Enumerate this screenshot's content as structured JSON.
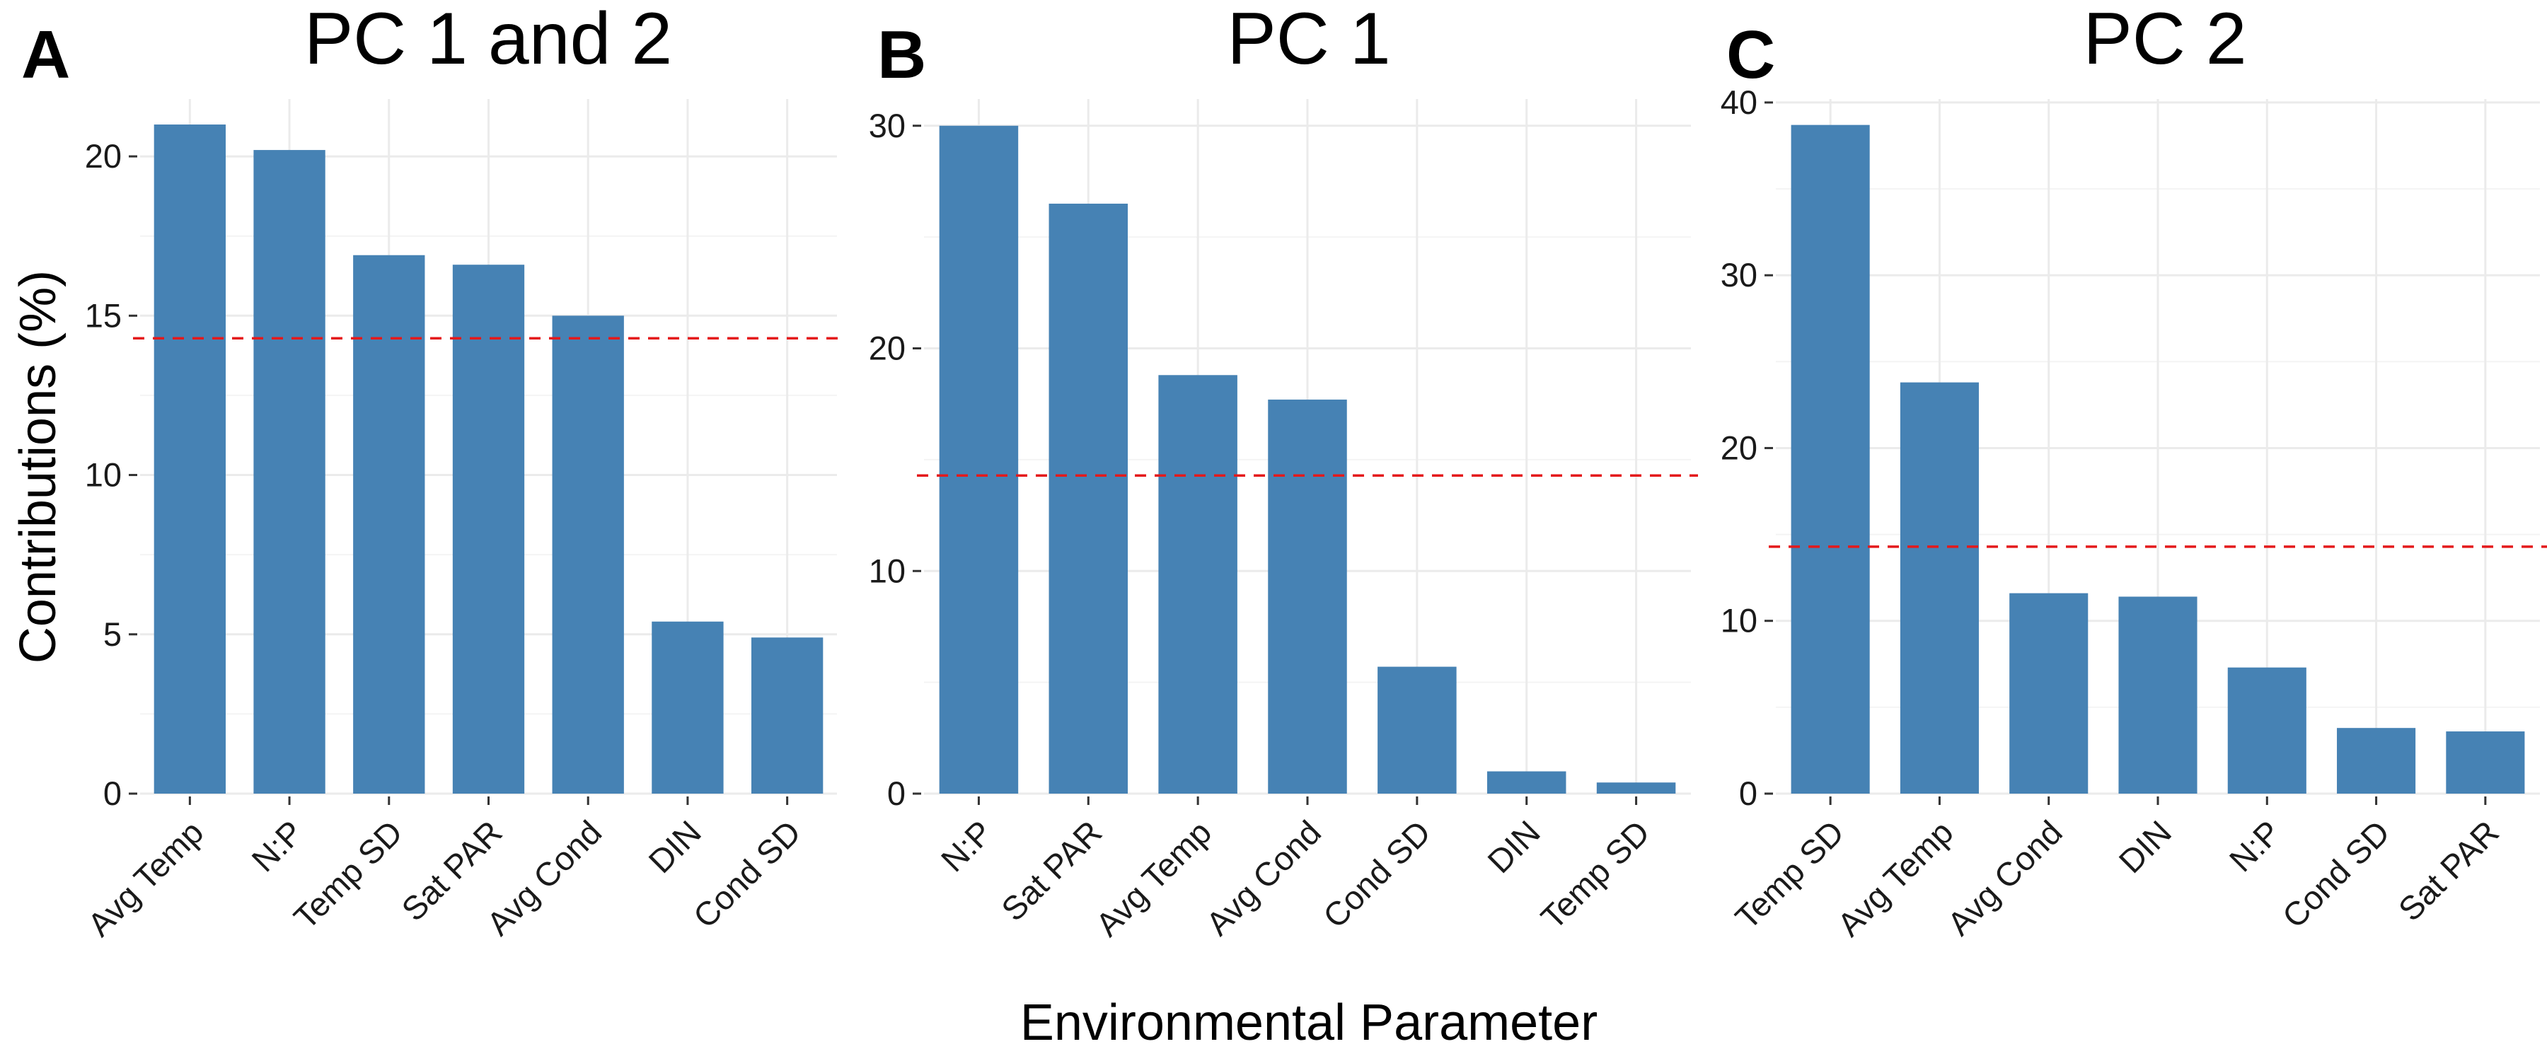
{
  "figure": {
    "ylabel": "Contributions (%)",
    "xlabel": "Environmental Parameter"
  },
  "chart_data": [
    {
      "type": "bar",
      "panel_letter": "A",
      "title": "PC 1 and 2",
      "categories": [
        "Avg Temp",
        "N:P",
        "Temp SD",
        "Sat PAR",
        "Avg Cond",
        "DIN",
        "Cond SD"
      ],
      "values": [
        21.0,
        20.2,
        16.9,
        16.6,
        15.0,
        5.4,
        4.9
      ],
      "reference_line": 14.29,
      "ylim": [
        0,
        21.8
      ],
      "yticks": [
        0,
        5,
        10,
        15,
        20
      ],
      "grid": true,
      "bar_color": "#4682B4",
      "reference_color": "#E41A1C"
    },
    {
      "type": "bar",
      "panel_letter": "B",
      "title": "PC 1",
      "categories": [
        "N:P",
        "Sat PAR",
        "Avg Temp",
        "Avg Cond",
        "Cond SD",
        "DIN",
        "Temp SD"
      ],
      "values": [
        30.0,
        26.5,
        18.8,
        17.7,
        5.7,
        1.0,
        0.5
      ],
      "reference_line": 14.29,
      "ylim": [
        0,
        31.2
      ],
      "yticks": [
        0,
        10,
        20,
        30
      ],
      "grid": true,
      "bar_color": "#4682B4",
      "reference_color": "#E41A1C"
    },
    {
      "type": "bar",
      "panel_letter": "C",
      "title": "PC 2",
      "categories": [
        "Temp SD",
        "Avg Temp",
        "Avg Cond",
        "DIN",
        "N:P",
        "Cond SD",
        "Sat PAR"
      ],
      "values": [
        38.7,
        23.8,
        11.6,
        11.4,
        7.3,
        3.8,
        3.6
      ],
      "reference_line": 14.29,
      "ylim": [
        0,
        40.2
      ],
      "yticks": [
        0,
        10,
        20,
        30,
        40
      ],
      "grid": true,
      "bar_color": "#4682B4",
      "reference_color": "#E41A1C"
    }
  ]
}
